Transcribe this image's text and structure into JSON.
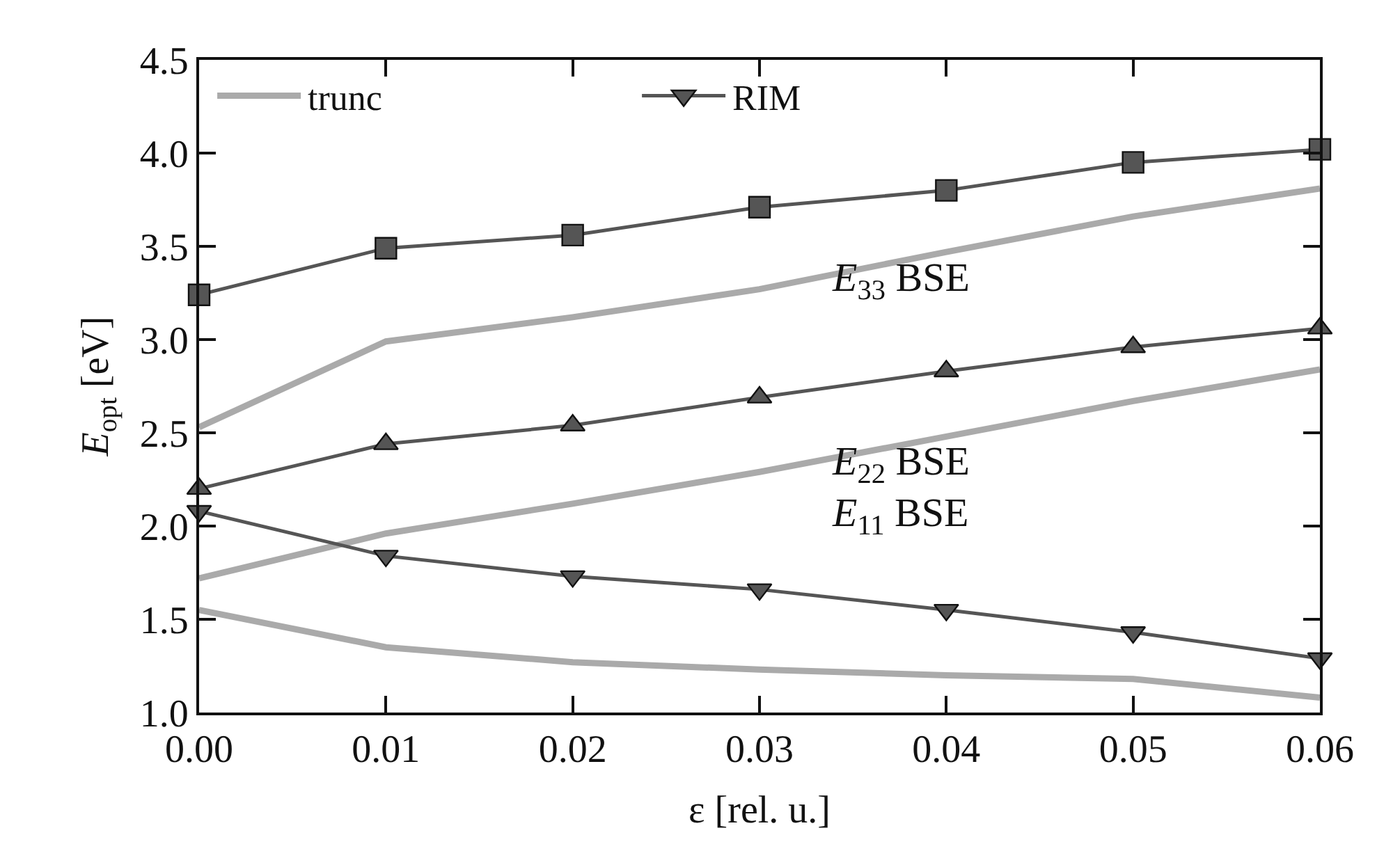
{
  "chart_data": {
    "type": "line",
    "xlabel": "ε [rel. u.]",
    "ylabel": "E$_{opt}$ [eV]",
    "x": [
      0.0,
      0.01,
      0.02,
      0.03,
      0.04,
      0.05,
      0.06
    ],
    "series": [
      {
        "name": "trunc",
        "color": "#aaaaaa",
        "marker": "none",
        "values": [
          2.53,
          2.99,
          3.12,
          3.27,
          3.47,
          3.66,
          3.81
        ]
      },
      {
        "color": "#aaaaaa",
        "marker": "none",
        "values": [
          1.72,
          1.96,
          2.12,
          2.29,
          2.48,
          2.67,
          2.84
        ]
      },
      {
        "color": "#aaaaaa",
        "marker": "none",
        "values": [
          1.55,
          1.35,
          1.27,
          1.23,
          1.2,
          1.18,
          1.08
        ]
      },
      {
        "color": "#555555",
        "marker": "square",
        "values": [
          3.24,
          3.49,
          3.56,
          3.71,
          3.8,
          3.95,
          4.02
        ]
      },
      {
        "color": "#555555",
        "marker": "triangle",
        "values": [
          2.2,
          2.44,
          2.54,
          2.69,
          2.83,
          2.96,
          3.06
        ]
      },
      {
        "name": "RIM",
        "color": "#555555",
        "marker": "triangle-down",
        "values": [
          2.08,
          1.84,
          1.73,
          1.66,
          1.55,
          1.43,
          1.29
        ]
      }
    ],
    "annotations": [
      "E$_{33}$ BSE",
      "E$_{22}$ BSE",
      "E$_{11}$ BSE"
    ],
    "xlim": [
      0.0,
      0.06
    ],
    "xticks": [
      {
        "value": 0.0,
        "label": "0.00"
      },
      0.01,
      0.02,
      0.03,
      0.04,
      0.05,
      0.06
    ],
    "ylim": [
      1.0,
      4.5
    ],
    "yticks": [
      {
        "value": 1.0,
        "label": "1.0"
      },
      1.5,
      {
        "value": 2.0,
        "label": "2.0"
      },
      2.5,
      {
        "value": 3.0,
        "label": "3.0"
      },
      3.5,
      {
        "value": 4.0,
        "label": "4.0"
      },
      4.5
    ],
    "legend": "top",
    "line_style": "solid"
  }
}
